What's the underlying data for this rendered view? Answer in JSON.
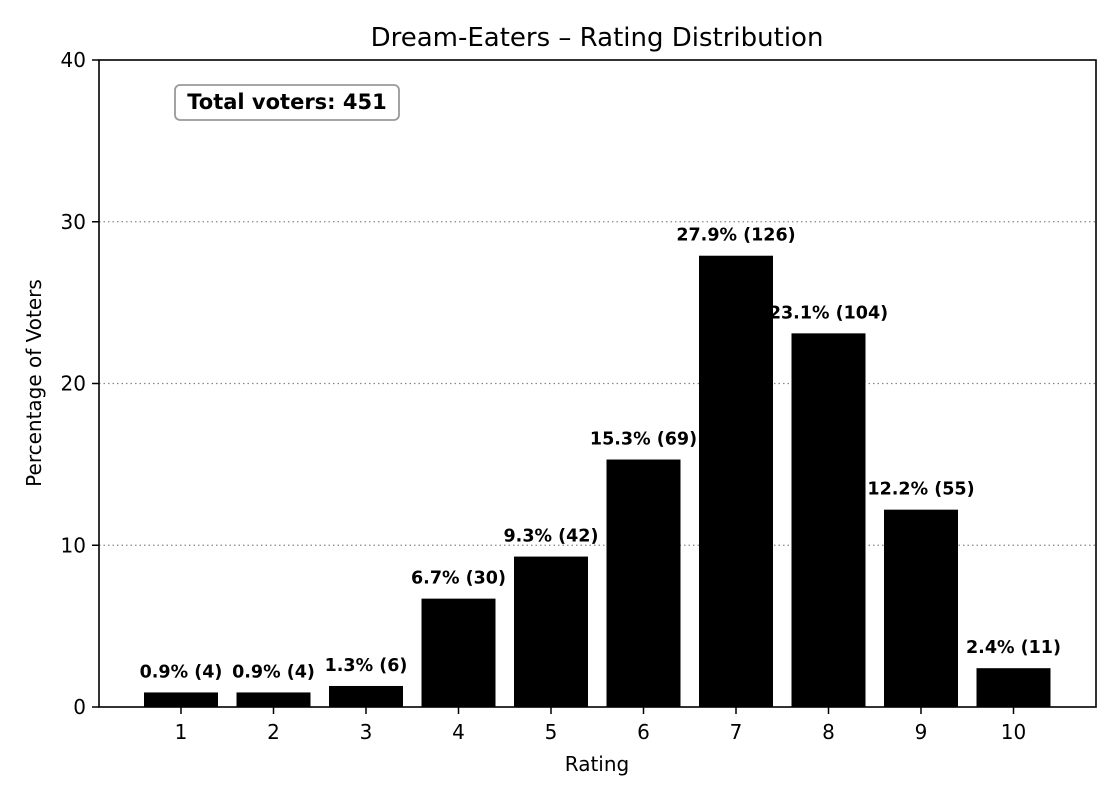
{
  "chart_data": {
    "type": "bar",
    "title": "Dream-Eaters – Rating Distribution",
    "xlabel": "Rating",
    "ylabel": "Percentage of Voters",
    "categories": [
      "1",
      "2",
      "3",
      "4",
      "5",
      "6",
      "7",
      "8",
      "9",
      "10"
    ],
    "values": [
      0.9,
      0.9,
      1.3,
      6.7,
      9.3,
      15.3,
      27.9,
      23.1,
      12.2,
      2.4
    ],
    "counts": [
      4,
      4,
      6,
      30,
      42,
      69,
      126,
      104,
      55,
      11
    ],
    "bar_labels": [
      "0.9% (4)",
      "0.9% (4)",
      "1.3% (6)",
      "6.7% (30)",
      "9.3% (42)",
      "15.3% (69)",
      "27.9% (126)",
      "23.1% (104)",
      "12.2% (55)",
      "2.4% (11)"
    ],
    "ylim": [
      0,
      40
    ],
    "yticks": [
      0,
      10,
      20,
      30,
      40
    ],
    "grid": {
      "axis": "y",
      "style": "dotted"
    },
    "bar_color": "#000000",
    "annotation": "Total voters: 451",
    "total_voters": 451,
    "legend": null
  }
}
